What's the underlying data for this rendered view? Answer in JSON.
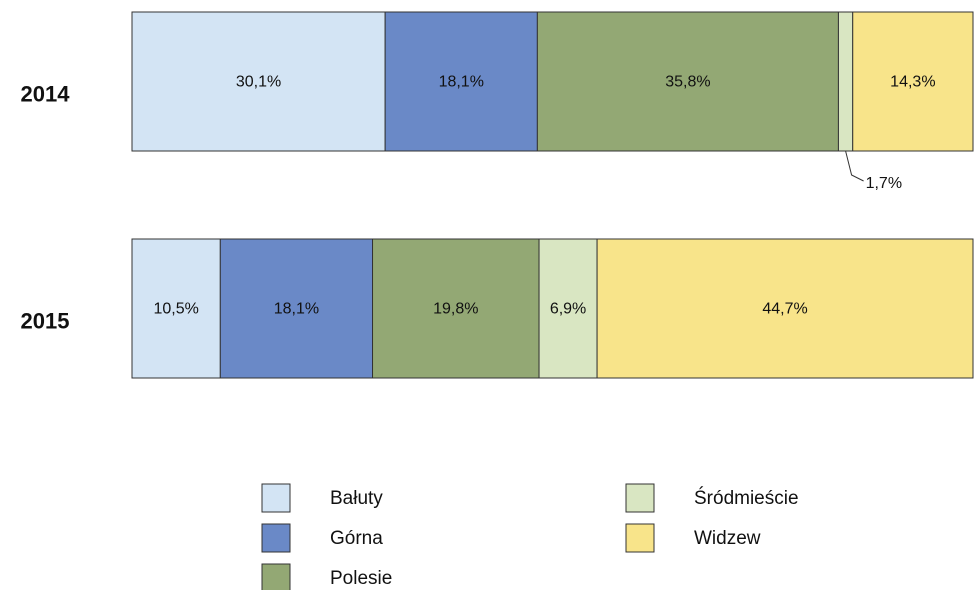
{
  "chart_data": {
    "type": "stacked-bar-horizontal",
    "categories": [
      "2014",
      "2015"
    ],
    "series": [
      {
        "name": "Bałuty",
        "color": "#d3e4f4",
        "values": [
          30.1,
          10.5
        ],
        "value_labels": [
          "30,1%",
          "10,5%"
        ]
      },
      {
        "name": "Górna",
        "color": "#6a89c7",
        "values": [
          18.1,
          18.1
        ],
        "value_labels": [
          "18,1%",
          "18,1%"
        ]
      },
      {
        "name": "Polesie",
        "color": "#93a874",
        "values": [
          35.8,
          19.8
        ],
        "value_labels": [
          "35,8%",
          "19,8%"
        ]
      },
      {
        "name": "Śródmieście",
        "color": "#d9e6c2",
        "values": [
          1.7,
          6.9
        ],
        "value_labels": [
          "1,7%",
          "6,9%"
        ]
      },
      {
        "name": "Widzew",
        "color": "#f8e48a",
        "values": [
          14.3,
          44.7
        ],
        "value_labels": [
          "14,3%",
          "44,7%"
        ]
      }
    ]
  }
}
